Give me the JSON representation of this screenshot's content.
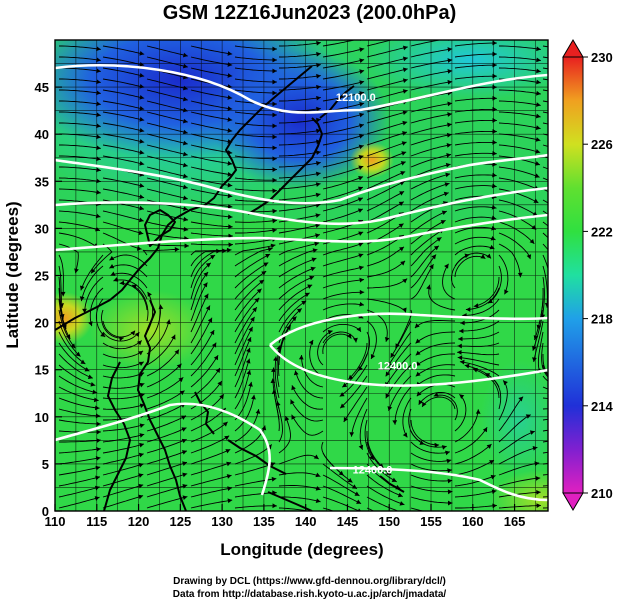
{
  "title": "GSM 12Z16Jun2023 (200.0hPa)",
  "axes": {
    "xlabel": "Longitude (degrees)",
    "ylabel": "Latitude  (degrees)",
    "xticks": [
      110,
      115,
      120,
      125,
      130,
      135,
      140,
      145,
      150,
      155,
      160,
      165
    ],
    "yticks": [
      0,
      5,
      10,
      15,
      20,
      25,
      30,
      35,
      40,
      45
    ],
    "xlim": [
      110,
      169
    ],
    "ylim": [
      0,
      50
    ]
  },
  "colorbar": {
    "ticks": [
      230,
      226,
      222,
      218,
      214,
      210
    ],
    "range": [
      210,
      230
    ]
  },
  "contour_labels": [
    {
      "text": "12100.0",
      "lon": 146,
      "lat": 43.5
    },
    {
      "text": "12400.0",
      "lon": 151,
      "lat": 15
    },
    {
      "text": "12400.0",
      "lon": 148,
      "lat": 4
    }
  ],
  "footer": {
    "line1": "Drawing by DCL (https://www.gfd-dennou.org/library/dcl/)",
    "line2": "Data from http://database.rish.kyoto-u.ac.jp/arch/jmadata/"
  },
  "colors": {
    "cold": "#1a3fd0",
    "mid": "#22d84a",
    "warm": "#f0a020",
    "contour": "#ffffff",
    "coast": "#000000"
  }
}
